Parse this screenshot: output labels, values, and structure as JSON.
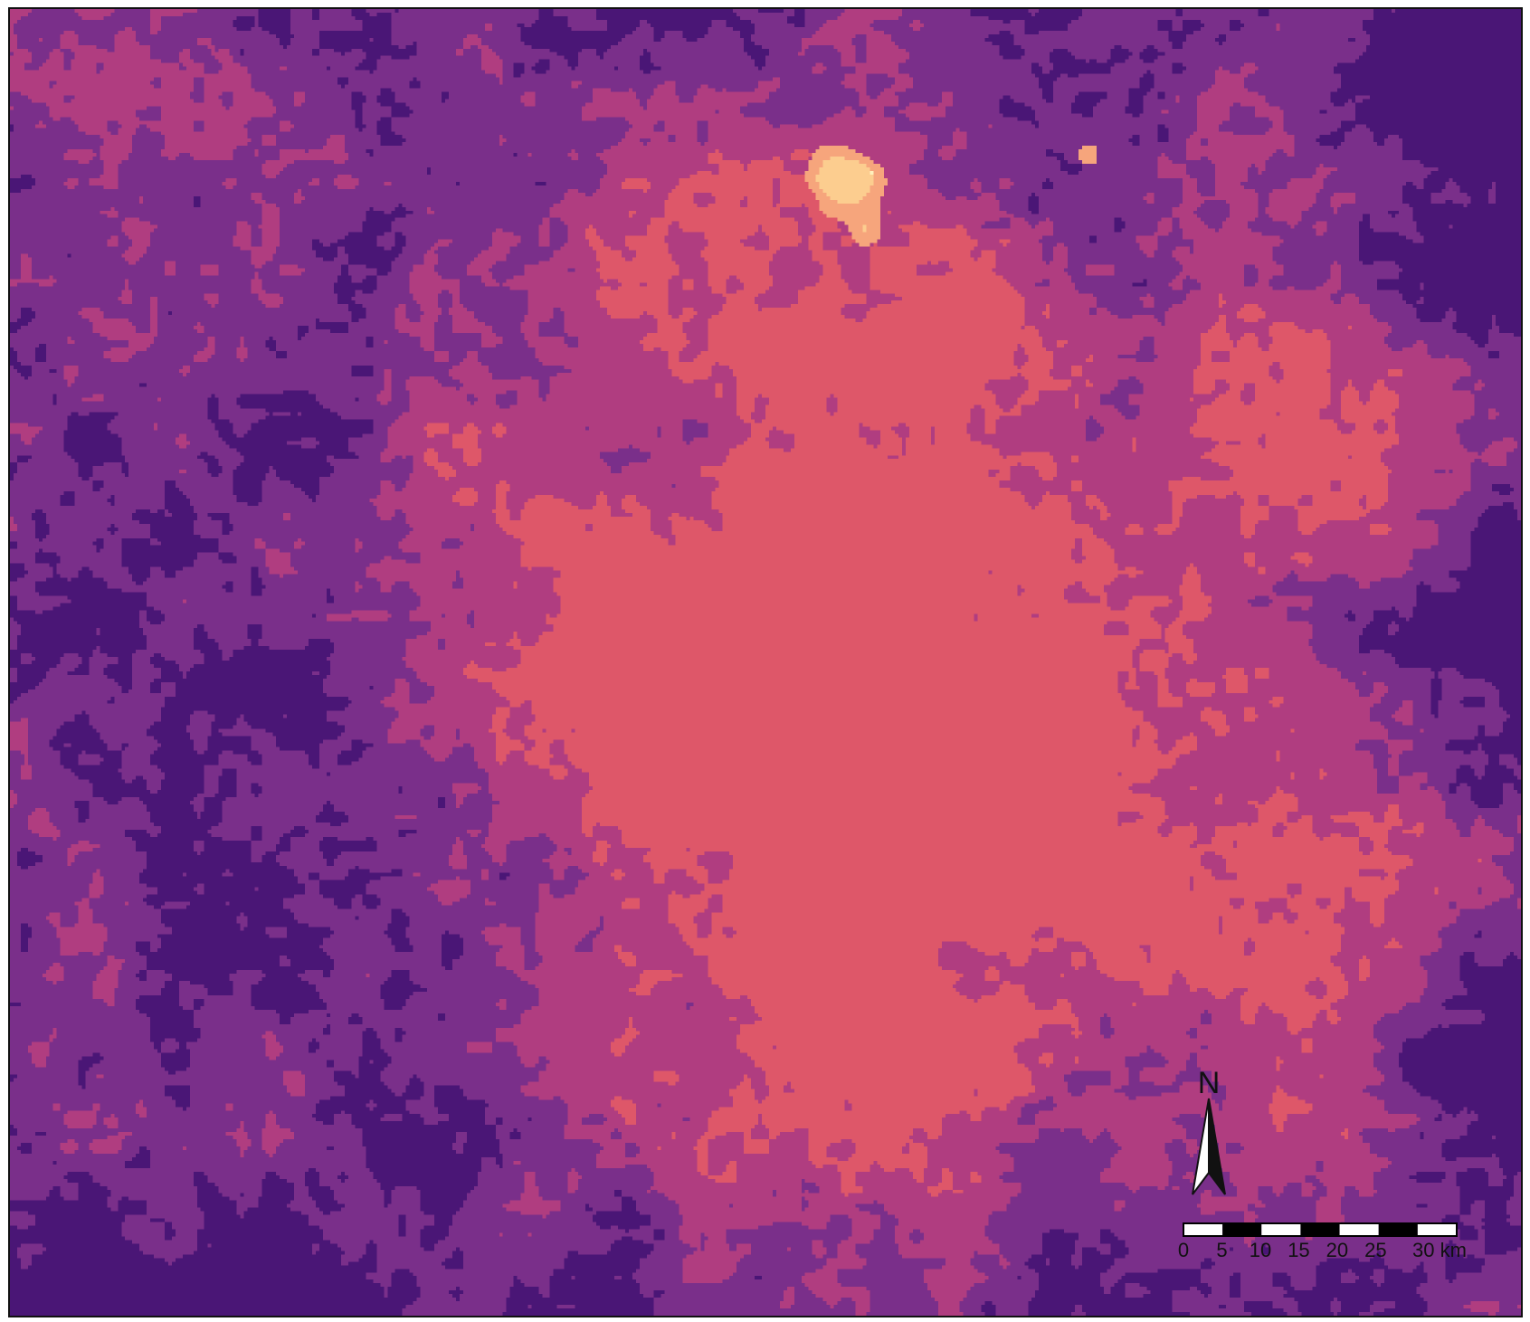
{
  "map": {
    "palette": {
      "class_1": "#4a1676",
      "class_2": "#7a2f8a",
      "class_3": "#b03d80",
      "class_4": "#de5769",
      "class_5": "#f6a57c",
      "class_6": "#fccd8f",
      "class_7": "#fff0bc"
    }
  },
  "north_arrow": {
    "label": "N"
  },
  "scale_bar": {
    "ticks": [
      "0",
      "5",
      "10",
      "15",
      "20",
      "25",
      "30 km"
    ],
    "colors": {
      "light": "#ffffff",
      "dark": "#000000"
    }
  }
}
